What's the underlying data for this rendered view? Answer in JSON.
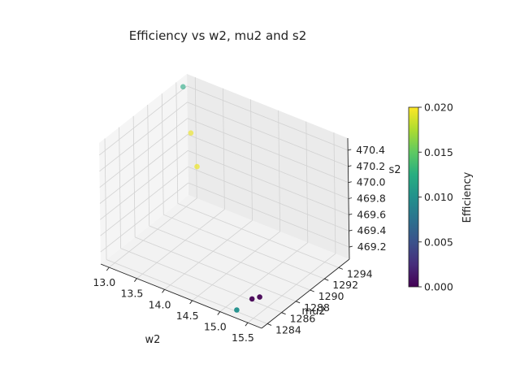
{
  "chart_data": {
    "type": "scatter",
    "projection": "3d",
    "title": "Efficiency vs w2, mu2 and s2",
    "xlabel": "w2",
    "ylabel": "mu2",
    "zlabel": "s2",
    "colorbar_label": "Efficiency",
    "colormap": "viridis",
    "xlim": [
      12.85,
      15.75
    ],
    "ylim": [
      1283.2,
      1295.5
    ],
    "zlim": [
      469.05,
      470.55
    ],
    "clim": [
      0.0,
      0.02
    ],
    "x_ticks": [
      "13.0",
      "13.5",
      "14.0",
      "14.5",
      "15.0",
      "15.5"
    ],
    "y_ticks": [
      "1284",
      "1286",
      "1288",
      "1290",
      "1292",
      "1294"
    ],
    "z_ticks": [
      "469.2",
      "469.4",
      "469.6",
      "469.8",
      "470.0",
      "470.2",
      "470.4"
    ],
    "colorbar_ticks": [
      "0.000",
      "0.005",
      "0.010",
      "0.015",
      "0.020"
    ],
    "grid": true,
    "points": [
      {
        "x": 13.0,
        "y": 1293.8,
        "z": 470.55,
        "c": 0.012
      },
      {
        "x": 13.3,
        "y": 1292.5,
        "z": 470.15,
        "c": 0.0195
      },
      {
        "x": 13.6,
        "y": 1291.0,
        "z": 469.92,
        "c": 0.0195
      },
      {
        "x": 15.4,
        "y": 1284.6,
        "z": 469.22,
        "c": 0.0
      },
      {
        "x": 15.5,
        "y": 1284.9,
        "z": 469.25,
        "c": 0.0
      },
      {
        "x": 15.2,
        "y": 1284.0,
        "z": 469.07,
        "c": 0.01
      }
    ]
  }
}
